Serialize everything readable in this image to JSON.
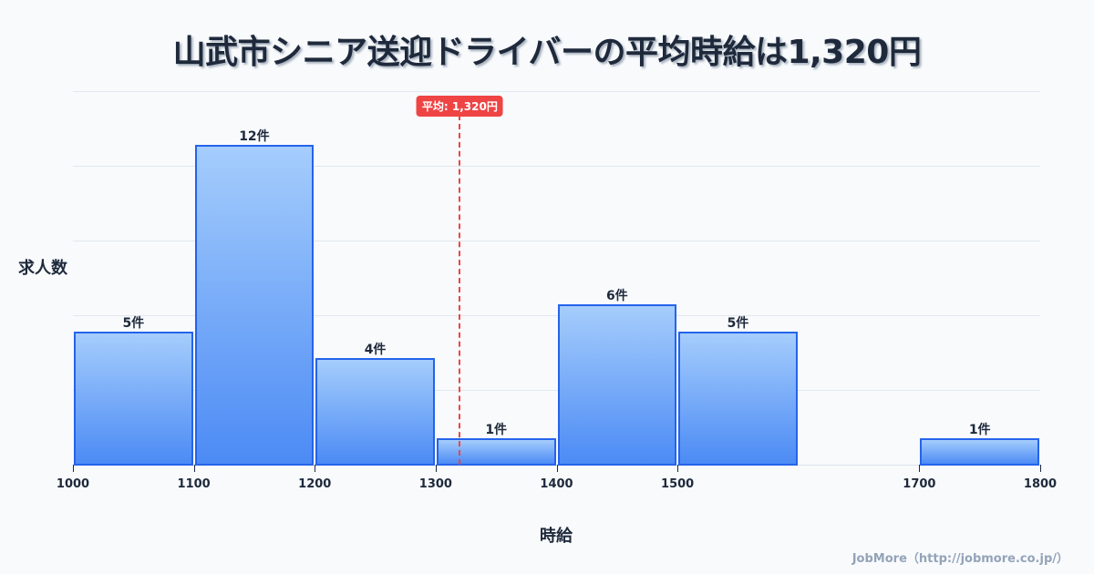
{
  "title": "山武市シニア送迎ドライバーの平均時給は1,320円",
  "footer": "JobMore（http://jobmore.co.jp/）",
  "chart_data": {
    "type": "bar",
    "subtype": "histogram",
    "title": "山武市シニア送迎ドライバーの平均時給は1,320円",
    "xlabel": "時給",
    "ylabel": "求人数",
    "bins": [
      {
        "start": 1000,
        "end": 1100,
        "count": 5,
        "label": "5件"
      },
      {
        "start": 1100,
        "end": 1200,
        "count": 12,
        "label": "12件"
      },
      {
        "start": 1200,
        "end": 1300,
        "count": 4,
        "label": "4件"
      },
      {
        "start": 1300,
        "end": 1400,
        "count": 1,
        "label": "1件"
      },
      {
        "start": 1400,
        "end": 1500,
        "count": 6,
        "label": "6件"
      },
      {
        "start": 1500,
        "end": 1600,
        "count": 5,
        "label": "5件"
      },
      {
        "start": 1700,
        "end": 1800,
        "count": 1,
        "label": "1件"
      }
    ],
    "categories": [
      "1000-1100",
      "1100-1200",
      "1200-1300",
      "1300-1400",
      "1400-1500",
      "1500-1600",
      "1700-1800"
    ],
    "values": [
      5,
      12,
      4,
      1,
      6,
      5,
      1
    ],
    "x_ticks": [
      "1000",
      "1100",
      "1200",
      "1300",
      "1400",
      "1500",
      "1700",
      "1800"
    ],
    "x_tick_values": [
      1000,
      1100,
      1200,
      1300,
      1400,
      1500,
      1700,
      1800
    ],
    "xlim": [
      1000,
      1800
    ],
    "ylim": [
      0,
      14
    ],
    "grid": true,
    "mean": {
      "value": 1320,
      "label": "平均: 1,320円",
      "color": "#ef4444"
    },
    "colors": {
      "bar_top": "#a5cdfc",
      "bar_bottom": "#4c8bf5",
      "bar_border": "#2563eb"
    },
    "legend": null
  }
}
